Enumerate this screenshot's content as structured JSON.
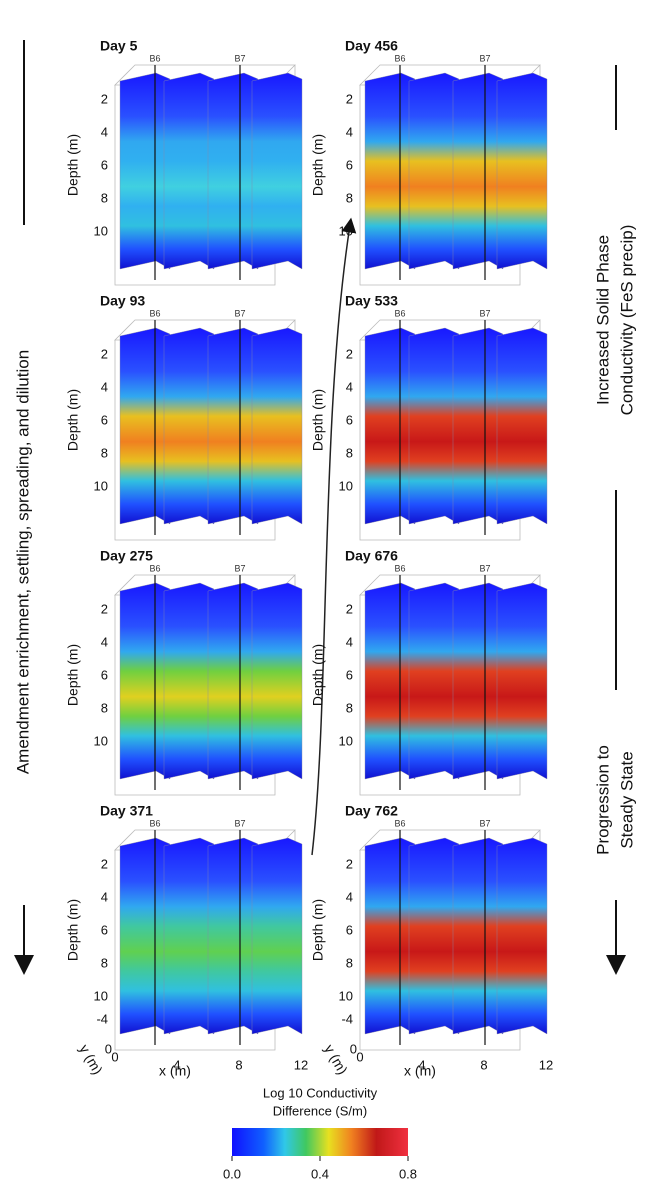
{
  "left_annotation": "Amendment enrichment, settling, spreading, and dilution",
  "right_top_annotation": [
    "Increased Solid Phase",
    "Conductivity (FeS precip)"
  ],
  "right_bottom_annotation": [
    "Progression to",
    "Steady State"
  ],
  "panels": [
    {
      "label": "Day 5",
      "wells": [
        "B6",
        "B7"
      ]
    },
    {
      "label": "Day 456",
      "wells": [
        "B6",
        "B7"
      ]
    },
    {
      "label": "Day 93",
      "wells": [
        "B6",
        "B7"
      ]
    },
    {
      "label": "Day 533",
      "wells": [
        "B6",
        "B7"
      ]
    },
    {
      "label": "Day 275",
      "wells": [
        "B6",
        "B7"
      ]
    },
    {
      "label": "Day 676",
      "wells": [
        "B6",
        "B7"
      ]
    },
    {
      "label": "Day 371",
      "wells": [
        "B6",
        "B7"
      ]
    },
    {
      "label": "Day 762",
      "wells": [
        "B6",
        "B7"
      ]
    }
  ],
  "depth_label": "Depth (m)",
  "depth_ticks": [
    2,
    4,
    6,
    8,
    10
  ],
  "x_label": "x (m)",
  "x_ticks": [
    0,
    4,
    8,
    12
  ],
  "y_label": "y (m)",
  "y_ticks": [
    -4,
    0
  ],
  "colorbar": {
    "title": [
      "Log 10 Conductivity",
      "Difference (S/m)"
    ],
    "ticks": [
      {
        "value": 0,
        "label": "0.0"
      },
      {
        "value": 0.4,
        "label": "0.4"
      },
      {
        "value": 0.8,
        "label": "0.8"
      }
    ],
    "lim": [
      0,
      0.8
    ]
  }
}
